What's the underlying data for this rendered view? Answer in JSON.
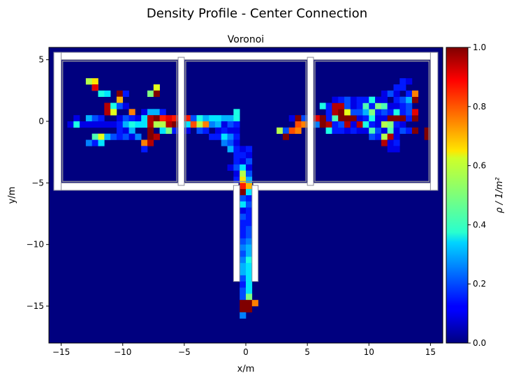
{
  "figure": {
    "suptitle": "Density Profile - Center Connection"
  },
  "chart_data": {
    "type": "heatmap",
    "title": "Voronoi",
    "xlabel": "x/m",
    "ylabel": "y/m",
    "xlim": [
      -16,
      16
    ],
    "ylim": [
      -18,
      6
    ],
    "x_ticks": [
      -15,
      -10,
      -5,
      0,
      5,
      10,
      15
    ],
    "y_ticks": [
      5,
      0,
      -5,
      -10,
      -15
    ],
    "colormap": "jet",
    "background_value": 0.0,
    "colorbar": {
      "label": "ρ / 1/m²",
      "range": [
        0.0,
        1.0
      ],
      "ticks": [
        "0.0",
        "0.2",
        "0.4",
        "0.6",
        "0.8",
        "1.0"
      ]
    },
    "grid": false,
    "cell_size": 0.5,
    "walls_color": "#ffffff",
    "walls_outline": "#8a8a99",
    "cells": [
      [
        -12.75,
        3.25,
        0.55
      ],
      [
        -12.25,
        3.25,
        0.65
      ],
      [
        -12.25,
        2.75,
        0.55
      ],
      [
        -12.25,
        2.75,
        0.9
      ],
      [
        -11.75,
        2.25,
        0.4
      ],
      [
        -11.25,
        2.25,
        0.35
      ],
      [
        -10.25,
        2.25,
        1.0
      ],
      [
        -9.75,
        2.25,
        0.15
      ],
      [
        -7.75,
        2.25,
        0.5
      ],
      [
        -7.25,
        2.75,
        0.6
      ],
      [
        -7.25,
        2.25,
        1.0
      ],
      [
        -10.25,
        1.75,
        0.7
      ],
      [
        -11.25,
        1.25,
        0.95
      ],
      [
        -11.25,
        0.75,
        0.95
      ],
      [
        -10.75,
        1.25,
        0.4
      ],
      [
        -10.75,
        0.75,
        0.6
      ],
      [
        -10.25,
        1.25,
        0.2
      ],
      [
        -9.75,
        1.25,
        0.1
      ],
      [
        -9.25,
        0.75,
        0.75
      ],
      [
        -8.25,
        0.75,
        0.1
      ],
      [
        -7.75,
        0.75,
        0.3
      ],
      [
        -7.25,
        0.75,
        0.3
      ],
      [
        -6.75,
        0.75,
        0.15
      ],
      [
        -13.75,
        0.25,
        0.1
      ],
      [
        -12.75,
        0.25,
        0.3
      ],
      [
        -12.25,
        0.25,
        0.2
      ],
      [
        -11.75,
        0.25,
        0.15
      ],
      [
        -10.25,
        0.25,
        0.1
      ],
      [
        -9.75,
        0.25,
        0.2
      ],
      [
        -9.25,
        0.25,
        0.15
      ],
      [
        -8.75,
        0.25,
        0.1
      ],
      [
        -8.25,
        0.25,
        0.35
      ],
      [
        -7.75,
        0.25,
        0.95
      ],
      [
        -7.25,
        0.25,
        1.0
      ],
      [
        -6.75,
        0.25,
        0.85
      ],
      [
        -6.25,
        0.25,
        0.9
      ],
      [
        -5.75,
        0.25,
        0.85
      ],
      [
        -5.25,
        0.25,
        0.8
      ],
      [
        -4.75,
        0.25,
        0.85
      ],
      [
        -4.25,
        0.25,
        0.2
      ],
      [
        -3.75,
        0.25,
        0.4
      ],
      [
        -3.25,
        0.25,
        0.3
      ],
      [
        -2.75,
        0.25,
        0.35
      ],
      [
        -2.25,
        0.25,
        0.35
      ],
      [
        -1.75,
        0.25,
        0.3
      ],
      [
        -1.25,
        0.25,
        0.3
      ],
      [
        -0.75,
        0.25,
        0.4
      ],
      [
        -0.75,
        0.75,
        0.4
      ],
      [
        -14.25,
        -0.25,
        0.1
      ],
      [
        -13.75,
        -0.25,
        0.4
      ],
      [
        -13.25,
        -0.25,
        0.1
      ],
      [
        -12.75,
        -0.25,
        0.1
      ],
      [
        -12.25,
        -0.25,
        0.1
      ],
      [
        -11.75,
        -0.25,
        0.1
      ],
      [
        -11.25,
        -0.25,
        0.1
      ],
      [
        -10.75,
        -0.25,
        0.1
      ],
      [
        -10.25,
        -0.25,
        0.15
      ],
      [
        -9.75,
        -0.25,
        0.3
      ],
      [
        -9.25,
        -0.25,
        0.4
      ],
      [
        -8.75,
        -0.25,
        0.35
      ],
      [
        -8.25,
        -0.25,
        0.35
      ],
      [
        -7.75,
        -0.25,
        0.95
      ],
      [
        -7.25,
        -0.25,
        0.55
      ],
      [
        -6.75,
        -0.25,
        0.55
      ],
      [
        -6.25,
        -0.25,
        0.95
      ],
      [
        -5.75,
        -0.25,
        1.0
      ],
      [
        -5.25,
        -0.25,
        0.95
      ],
      [
        -4.75,
        -0.25,
        0.35
      ],
      [
        -4.25,
        -0.25,
        0.8
      ],
      [
        -3.75,
        -0.25,
        0.55
      ],
      [
        -3.25,
        -0.25,
        0.75
      ],
      [
        -2.75,
        -0.25,
        0.25
      ],
      [
        -2.25,
        -0.25,
        0.3
      ],
      [
        -1.75,
        -0.25,
        0.1
      ],
      [
        -1.25,
        -0.25,
        0.2
      ],
      [
        -0.75,
        -0.25,
        0.15
      ],
      [
        -10.25,
        -0.75,
        0.15
      ],
      [
        -9.75,
        -0.75,
        0.1
      ],
      [
        -9.25,
        -0.75,
        0.3
      ],
      [
        -7.75,
        -0.75,
        1.0
      ],
      [
        -6.75,
        -0.75,
        0.35
      ],
      [
        -6.25,
        -0.75,
        0.5
      ],
      [
        -5.75,
        -0.75,
        0.15
      ],
      [
        -4.75,
        -0.75,
        0.1
      ],
      [
        -3.75,
        -0.75,
        0.2
      ],
      [
        -3.25,
        -0.75,
        0.15
      ],
      [
        -2.25,
        -0.75,
        0.1
      ],
      [
        -1.75,
        -0.75,
        0.15
      ],
      [
        -1.25,
        -0.75,
        0.1
      ],
      [
        -0.75,
        -0.75,
        0.1
      ],
      [
        -12.25,
        -1.25,
        0.45
      ],
      [
        -11.75,
        -1.25,
        0.6
      ],
      [
        -11.25,
        -1.25,
        0.3
      ],
      [
        -10.75,
        -1.25,
        0.2
      ],
      [
        -10.25,
        -1.25,
        0.15
      ],
      [
        -9.75,
        -1.25,
        0.2
      ],
      [
        -9.25,
        -1.25,
        0.1
      ],
      [
        -8.75,
        -1.25,
        0.25
      ],
      [
        -7.75,
        -1.25,
        1.0
      ],
      [
        -7.25,
        -1.25,
        0.95
      ],
      [
        -2.75,
        -1.25,
        0.15
      ],
      [
        -2.25,
        -1.25,
        0.15
      ],
      [
        -1.75,
        -1.25,
        0.35
      ],
      [
        -1.25,
        -1.25,
        0.25
      ],
      [
        -0.75,
        -1.25,
        0.15
      ],
      [
        -12.75,
        -1.75,
        0.25
      ],
      [
        -12.25,
        -1.75,
        0.15
      ],
      [
        -11.75,
        -1.75,
        0.35
      ],
      [
        -8.25,
        -1.75,
        0.75
      ],
      [
        -7.75,
        -1.75,
        0.95
      ],
      [
        -1.75,
        -1.75,
        0.25
      ],
      [
        -1.25,
        -1.75,
        0.2
      ],
      [
        -0.75,
        -1.75,
        0.1
      ],
      [
        -8.25,
        -2.25,
        0.15
      ],
      [
        -1.25,
        -2.25,
        0.3
      ],
      [
        -0.75,
        -2.25,
        0.15
      ],
      [
        -0.25,
        -2.25,
        0.1
      ],
      [
        0.25,
        -2.25,
        0.15
      ],
      [
        -0.75,
        -2.75,
        0.15
      ],
      [
        -0.25,
        -2.75,
        0.15
      ],
      [
        0.25,
        -2.75,
        0.1
      ],
      [
        -0.75,
        -3.25,
        0.15
      ],
      [
        -0.25,
        -3.25,
        0.1
      ],
      [
        0.25,
        -3.25,
        0.2
      ],
      [
        -1.25,
        -3.75,
        0.1
      ],
      [
        -0.75,
        -3.75,
        0.2
      ],
      [
        -0.25,
        -3.75,
        0.35
      ],
      [
        0.25,
        -3.75,
        0.1
      ],
      [
        -0.75,
        -4.25,
        0.1
      ],
      [
        -0.25,
        -4.25,
        0.55
      ],
      [
        0.25,
        -4.25,
        0.2
      ],
      [
        -0.75,
        -4.75,
        0.15
      ],
      [
        -0.25,
        -4.75,
        0.65
      ],
      [
        0.25,
        -4.75,
        0.3
      ],
      [
        -0.25,
        -5.25,
        0.85
      ],
      [
        0.25,
        -5.25,
        0.7
      ],
      [
        -0.25,
        -5.75,
        1.0
      ],
      [
        0.25,
        -5.75,
        0.35
      ],
      [
        -0.25,
        -6.25,
        0.2
      ],
      [
        0.25,
        -6.25,
        0.15
      ],
      [
        -0.25,
        -6.75,
        0.35
      ],
      [
        0.25,
        -6.75,
        0.2
      ],
      [
        -0.25,
        -7.25,
        0.1
      ],
      [
        0.25,
        -7.25,
        0.15
      ],
      [
        -0.25,
        -7.75,
        0.2
      ],
      [
        0.25,
        -7.75,
        0.15
      ],
      [
        -0.25,
        -8.25,
        0.15
      ],
      [
        0.25,
        -8.25,
        0.15
      ],
      [
        -0.25,
        -8.75,
        0.15
      ],
      [
        0.25,
        -8.75,
        0.2
      ],
      [
        -0.25,
        -9.25,
        0.15
      ],
      [
        0.25,
        -9.25,
        0.2
      ],
      [
        -0.25,
        -9.75,
        0.2
      ],
      [
        0.25,
        -9.75,
        0.25
      ],
      [
        -0.25,
        -10.25,
        0.25
      ],
      [
        0.25,
        -10.25,
        0.3
      ],
      [
        -0.25,
        -10.75,
        0.2
      ],
      [
        0.25,
        -10.75,
        0.3
      ],
      [
        -0.25,
        -11.25,
        0.25
      ],
      [
        0.25,
        -11.25,
        0.4
      ],
      [
        -0.25,
        -11.75,
        0.3
      ],
      [
        0.25,
        -11.75,
        0.35
      ],
      [
        -0.25,
        -12.25,
        0.3
      ],
      [
        0.25,
        -12.25,
        0.35
      ],
      [
        -0.25,
        -12.75,
        0.2
      ],
      [
        0.25,
        -12.75,
        0.35
      ],
      [
        -0.25,
        -13.25,
        0.15
      ],
      [
        0.25,
        -13.25,
        0.35
      ],
      [
        -0.25,
        -13.75,
        0.2
      ],
      [
        0.25,
        -13.75,
        0.35
      ],
      [
        -0.25,
        -14.25,
        0.2
      ],
      [
        0.25,
        -14.25,
        0.5
      ],
      [
        -0.25,
        -14.75,
        1.0
      ],
      [
        0.25,
        -14.75,
        1.0
      ],
      [
        0.75,
        -14.75,
        0.75
      ],
      [
        -0.25,
        -15.25,
        1.0
      ],
      [
        0.25,
        -15.25,
        1.0
      ],
      [
        -0.25,
        -15.75,
        0.25
      ],
      [
        3.75,
        0.25,
        0.1
      ],
      [
        4.25,
        0.25,
        1.0
      ],
      [
        4.75,
        0.25,
        0.2
      ],
      [
        4.25,
        -0.25,
        0.8
      ],
      [
        4.75,
        -0.25,
        0.75
      ],
      [
        5.25,
        -0.25,
        0.2
      ],
      [
        5.75,
        -0.25,
        0.25
      ],
      [
        6.25,
        -0.25,
        1.0
      ],
      [
        6.75,
        -0.25,
        0.95
      ],
      [
        6.75,
        0.25,
        0.15
      ],
      [
        5.75,
        0.25,
        0.9
      ],
      [
        6.25,
        0.25,
        1.0
      ],
      [
        2.75,
        -0.75,
        0.55
      ],
      [
        3.25,
        -0.75,
        0.2
      ],
      [
        3.75,
        -0.75,
        0.8
      ],
      [
        4.25,
        -0.75,
        0.75
      ],
      [
        3.25,
        -1.25,
        1.0
      ],
      [
        7.25,
        0.25,
        0.45
      ],
      [
        7.75,
        0.25,
        1.0
      ],
      [
        8.25,
        0.25,
        1.0
      ],
      [
        8.75,
        0.25,
        1.0
      ],
      [
        9.25,
        0.25,
        0.1
      ],
      [
        9.75,
        0.25,
        0.15
      ],
      [
        10.25,
        0.25,
        0.4
      ],
      [
        10.75,
        0.25,
        0.1
      ],
      [
        11.25,
        0.25,
        0.1
      ],
      [
        11.75,
        0.25,
        1.0
      ],
      [
        12.25,
        0.25,
        1.0
      ],
      [
        12.75,
        0.25,
        1.0
      ],
      [
        13.25,
        0.25,
        0.15
      ],
      [
        13.75,
        0.25,
        1.0
      ],
      [
        6.75,
        -0.75,
        0.4
      ],
      [
        7.25,
        -0.75,
        0.15
      ],
      [
        7.75,
        -0.75,
        0.15
      ],
      [
        8.25,
        -0.75,
        0.1
      ],
      [
        8.75,
        -0.75,
        0.15
      ],
      [
        9.25,
        -0.75,
        0.1
      ],
      [
        9.75,
        -0.75,
        0.1
      ],
      [
        10.25,
        -0.75,
        0.45
      ],
      [
        10.75,
        -0.75,
        0.2
      ],
      [
        11.25,
        -0.75,
        0.1
      ],
      [
        11.75,
        -0.75,
        0.45
      ],
      [
        12.25,
        -0.75,
        0.1
      ],
      [
        12.75,
        -0.75,
        0.2
      ],
      [
        13.25,
        -0.75,
        0.15
      ],
      [
        13.75,
        -0.75,
        1.0
      ],
      [
        14.75,
        -0.75,
        1.0
      ],
      [
        7.25,
        -0.25,
        0.15
      ],
      [
        7.75,
        -0.25,
        0.2
      ],
      [
        8.25,
        -0.25,
        0.95
      ],
      [
        8.75,
        -0.25,
        0.1
      ],
      [
        9.25,
        -0.25,
        0.95
      ],
      [
        9.75,
        -0.25,
        0.4
      ],
      [
        10.25,
        -0.25,
        0.15
      ],
      [
        10.75,
        -0.25,
        0.1
      ],
      [
        11.25,
        -0.25,
        0.55
      ],
      [
        11.75,
        -0.25,
        0.5
      ],
      [
        12.25,
        -0.25,
        0.15
      ],
      [
        12.75,
        -0.25,
        0.1
      ],
      [
        10.25,
        -1.25,
        0.2
      ],
      [
        10.75,
        -1.25,
        0.15
      ],
      [
        11.25,
        -1.25,
        0.55
      ],
      [
        11.75,
        -1.25,
        0.95
      ],
      [
        12.25,
        -1.25,
        0.1
      ],
      [
        14.75,
        -1.25,
        1.0
      ],
      [
        11.25,
        -1.75,
        0.95
      ],
      [
        11.75,
        -1.75,
        0.1
      ],
      [
        12.25,
        -1.75,
        0.15
      ],
      [
        11.75,
        -2.25,
        0.1
      ],
      [
        12.25,
        -2.25,
        0.1
      ],
      [
        6.75,
        0.75,
        0.15
      ],
      [
        7.25,
        0.75,
        0.95
      ],
      [
        7.75,
        0.75,
        1.0
      ],
      [
        8.25,
        0.75,
        0.6
      ],
      [
        8.75,
        0.75,
        0.2
      ],
      [
        9.25,
        0.75,
        0.2
      ],
      [
        9.75,
        0.75,
        0.3
      ],
      [
        10.25,
        0.75,
        0.5
      ],
      [
        10.75,
        0.75,
        0.15
      ],
      [
        11.25,
        0.75,
        0.2
      ],
      [
        11.75,
        0.75,
        0.15
      ],
      [
        12.25,
        0.75,
        0.4
      ],
      [
        12.75,
        0.75,
        0.15
      ],
      [
        13.25,
        0.75,
        0.2
      ],
      [
        13.75,
        0.75,
        0.9
      ],
      [
        6.25,
        1.25,
        0.4
      ],
      [
        6.75,
        1.25,
        0.15
      ],
      [
        7.25,
        1.25,
        0.95
      ],
      [
        7.75,
        1.25,
        0.95
      ],
      [
        8.25,
        1.25,
        0.2
      ],
      [
        8.75,
        1.25,
        0.1
      ],
      [
        9.25,
        1.25,
        0.15
      ],
      [
        9.75,
        1.25,
        0.45
      ],
      [
        10.25,
        1.25,
        0.15
      ],
      [
        10.75,
        1.25,
        0.5
      ],
      [
        11.25,
        1.25,
        0.45
      ],
      [
        11.75,
        1.25,
        0.1
      ],
      [
        12.25,
        1.25,
        0.1
      ],
      [
        12.75,
        1.25,
        0.15
      ],
      [
        13.25,
        1.25,
        0.2
      ],
      [
        7.25,
        1.75,
        0.1
      ],
      [
        7.75,
        1.75,
        0.15
      ],
      [
        8.25,
        1.75,
        0.2
      ],
      [
        8.75,
        1.75,
        0.1
      ],
      [
        9.25,
        1.75,
        0.15
      ],
      [
        9.75,
        1.75,
        0.15
      ],
      [
        10.25,
        1.75,
        0.4
      ],
      [
        10.75,
        1.75,
        0.1
      ],
      [
        11.25,
        1.75,
        0.1
      ],
      [
        12.25,
        1.75,
        0.15
      ],
      [
        12.75,
        1.75,
        0.2
      ],
      [
        13.25,
        1.75,
        0.3
      ],
      [
        13.75,
        1.75,
        1.0
      ],
      [
        11.25,
        2.25,
        0.1
      ],
      [
        11.75,
        2.25,
        0.2
      ],
      [
        12.25,
        2.25,
        0.1
      ],
      [
        13.25,
        2.25,
        0.15
      ],
      [
        13.75,
        2.25,
        0.75
      ],
      [
        12.25,
        2.75,
        0.15
      ],
      [
        12.75,
        2.75,
        0.15
      ],
      [
        12.75,
        3.25,
        0.15
      ],
      [
        13.25,
        3.25,
        0.1
      ]
    ]
  }
}
